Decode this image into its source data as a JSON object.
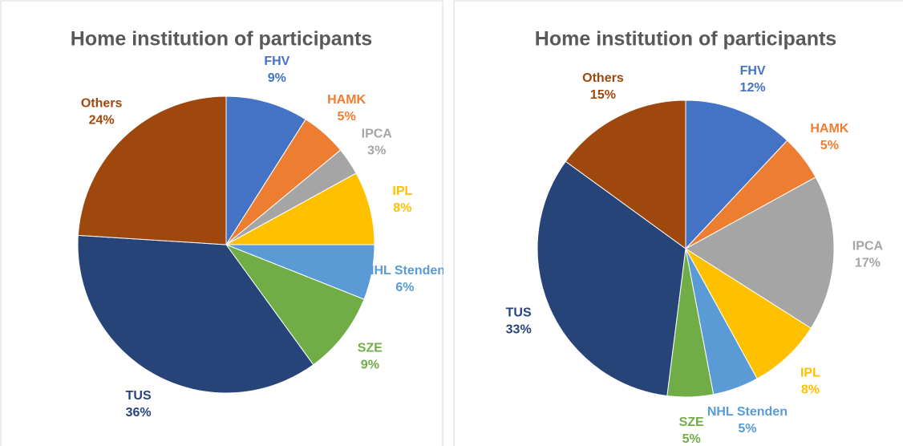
{
  "chart_data": [
    {
      "type": "pie",
      "title": "Home institution of participants",
      "categories": [
        "FHV",
        "HAMK",
        "IPCA",
        "IPL",
        "NHL Stenden",
        "SZE",
        "TUS",
        "Others"
      ],
      "values": [
        9,
        5,
        3,
        8,
        6,
        9,
        36,
        24
      ],
      "value_labels": [
        "9%",
        "5%",
        "3%",
        "8%",
        "6%",
        "9%",
        "36%",
        "24%"
      ],
      "colors": [
        "#4472c4",
        "#ed7d31",
        "#a5a5a5",
        "#ffc000",
        "#5b9bd5",
        "#70ad47",
        "#264478",
        "#9e480e"
      ]
    },
    {
      "type": "pie",
      "title": "Home institution of participants",
      "categories": [
        "FHV",
        "HAMK",
        "IPCA",
        "IPL",
        "NHL Stenden",
        "SZE",
        "TUS",
        "Others"
      ],
      "values": [
        12,
        5,
        17,
        8,
        5,
        5,
        33,
        15
      ],
      "value_labels": [
        "12%",
        "5%",
        "17%",
        "8%",
        "5%",
        "5%",
        "33%",
        "15%"
      ],
      "colors": [
        "#4472c4",
        "#ed7d31",
        "#a5a5a5",
        "#ffc000",
        "#5b9bd5",
        "#70ad47",
        "#264478",
        "#9e480e"
      ]
    }
  ]
}
